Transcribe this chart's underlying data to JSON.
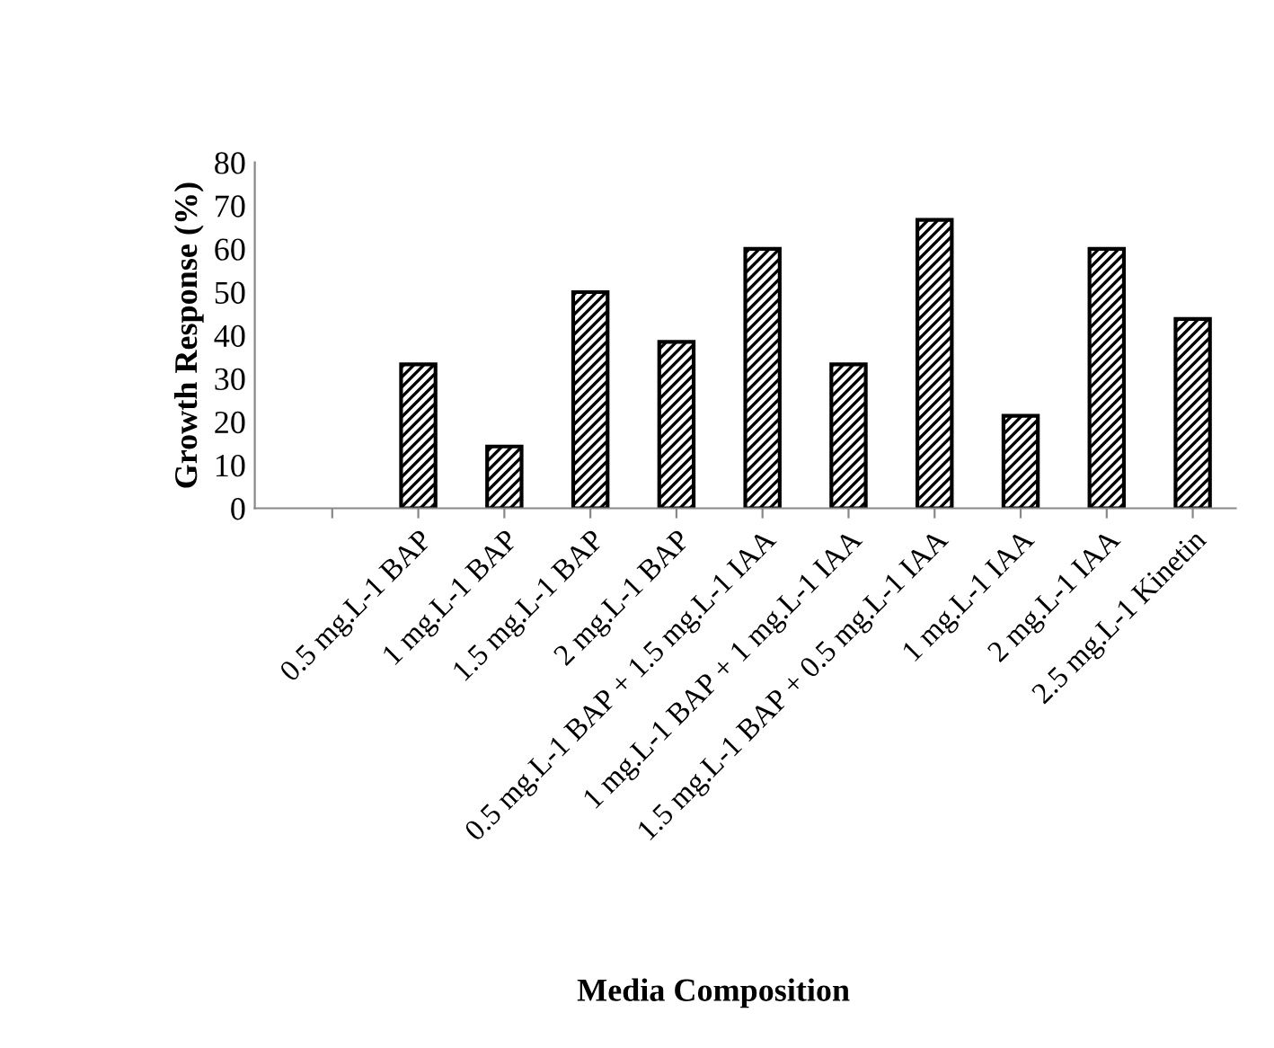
{
  "chart_data": {
    "type": "bar",
    "xlabel": "Media Composition",
    "ylabel": "Growth Response (%)",
    "categories": [
      null,
      "0.5 mg.L-1 BAP",
      "1 mg.L-1 BAP",
      "1.5 mg.L-1 BAP",
      "2 mg.L-1 BAP",
      "0.5 mg.L-1 BAP + 1.5 mg.L-1 IAA",
      "1 mg.L-1 BAP + 1 mg.L-1 IAA",
      "1.5 mg.L-1 BAP + 0.5 mg.L-1 IAA",
      "1 mg.L-1 IAA",
      "2 mg.L-1 IAA",
      "2.5 mg.L-1 Kinetin"
    ],
    "values": [
      null,
      33.3,
      14.3,
      50,
      38.5,
      60,
      33.3,
      66.7,
      21.4,
      60,
      43.8
    ],
    "color": "#000000",
    "ylim": [
      0,
      80
    ],
    "yticks": [
      0,
      10,
      20,
      30,
      40,
      50,
      60,
      70,
      80
    ],
    "grid": false,
    "legend": false
  }
}
